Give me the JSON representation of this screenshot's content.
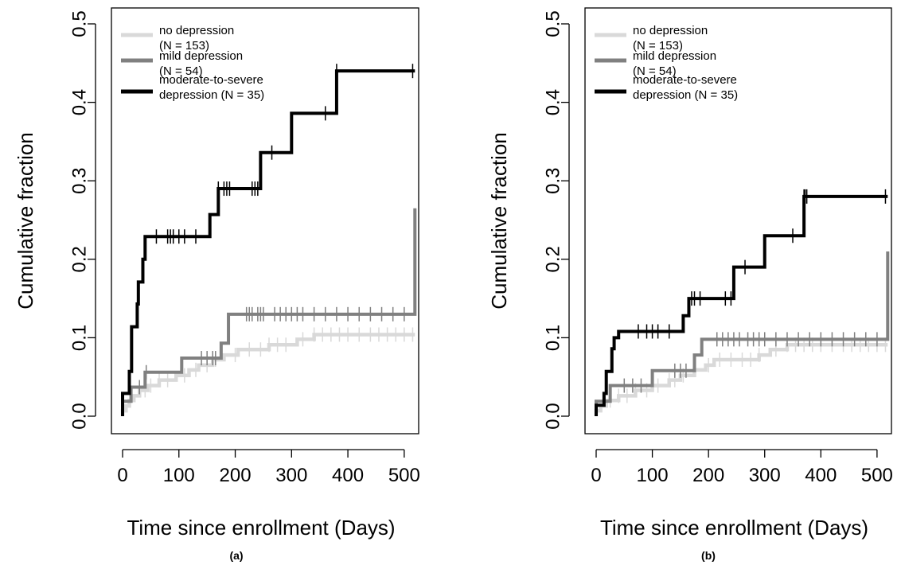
{
  "chart_data": [
    {
      "type": "line",
      "panel_label": "(a)",
      "xlabel": "Time since enrollment (Days)",
      "ylabel": "Cumulative fraction",
      "xlim": [
        0,
        520
      ],
      "ylim": [
        0,
        0.5
      ],
      "xticks": [
        "0",
        "100",
        "200",
        "300",
        "400",
        "500"
      ],
      "yticks": [
        "0.0",
        "0.1",
        "0.2",
        "0.3",
        "0.4",
        "0.5"
      ],
      "legend": {
        "position": "top-left",
        "entries": [
          {
            "line1": "no depression",
            "line2": "(N = 153)",
            "color": "#d9d9d9"
          },
          {
            "line1": "mild depression",
            "line2": "(N =  54)",
            "color": "#808080"
          },
          {
            "line1": "moderate-to-severe",
            "line2": "depression (N = 35)",
            "color": "#000000"
          }
        ]
      },
      "series": [
        {
          "name": "no depression (N = 153)",
          "color": "#d9d9d9",
          "steps": [
            [
              0,
              0
            ],
            [
              0,
              0.007
            ],
            [
              6,
              0.013
            ],
            [
              12,
              0.02
            ],
            [
              20,
              0.026
            ],
            [
              30,
              0.033
            ],
            [
              45,
              0.039
            ],
            [
              65,
              0.046
            ],
            [
              95,
              0.052
            ],
            [
              118,
              0.059
            ],
            [
              135,
              0.065
            ],
            [
              160,
              0.072
            ],
            [
              180,
              0.078
            ],
            [
              205,
              0.085
            ],
            [
              260,
              0.091
            ],
            [
              310,
              0.098
            ],
            [
              340,
              0.104
            ],
            [
              519,
              0.104
            ],
            [
              519,
              0.104
            ]
          ],
          "censor_x": [
            30,
            40,
            50,
            65,
            80,
            110,
            130,
            150,
            165,
            200,
            225,
            245,
            260,
            275,
            290,
            320,
            340,
            355,
            370,
            385,
            400,
            420,
            440,
            455,
            470,
            485,
            500,
            515
          ]
        },
        {
          "name": "mild depression (N =  54)",
          "color": "#808080",
          "steps": [
            [
              0,
              0
            ],
            [
              0,
              0.019
            ],
            [
              15,
              0.037
            ],
            [
              40,
              0.056
            ],
            [
              105,
              0.074
            ],
            [
              175,
              0.093
            ],
            [
              188,
              0.111
            ],
            [
              188,
              0.13
            ],
            [
              519,
              0.13
            ],
            [
              519,
              0.265
            ]
          ],
          "censor_x": [
            30,
            42,
            140,
            150,
            160,
            165,
            220,
            225,
            230,
            240,
            245,
            250,
            270,
            280,
            290,
            300,
            310,
            320,
            340,
            360,
            380,
            400,
            420,
            440,
            460,
            480,
            500
          ]
        },
        {
          "name": "moderate-to-severe depression (N = 35)",
          "color": "#000000",
          "steps": [
            [
              0,
              0
            ],
            [
              0,
              0.029
            ],
            [
              12,
              0.057
            ],
            [
              16,
              0.114
            ],
            [
              26,
              0.143
            ],
            [
              28,
              0.171
            ],
            [
              36,
              0.2
            ],
            [
              40,
              0.229
            ],
            [
              155,
              0.257
            ],
            [
              170,
              0.29
            ],
            [
              245,
              0.336
            ],
            [
              300,
              0.386
            ],
            [
              380,
              0.44
            ],
            [
              519,
              0.44
            ]
          ],
          "censor_x": [
            60,
            80,
            85,
            90,
            100,
            110,
            130,
            170,
            180,
            185,
            190,
            230,
            235,
            240,
            265,
            360,
            380,
            515
          ]
        }
      ]
    },
    {
      "type": "line",
      "panel_label": "(b)",
      "xlabel": "Time since enrollment (Days)",
      "ylabel": "Cumulative fraction",
      "xlim": [
        0,
        520
      ],
      "ylim": [
        0,
        0.5
      ],
      "xticks": [
        "0",
        "100",
        "200",
        "300",
        "400",
        "500"
      ],
      "yticks": [
        "0.0",
        "0.1",
        "0.2",
        "0.3",
        "0.4",
        "0.5"
      ],
      "legend": {
        "position": "top-left",
        "entries": [
          {
            "line1": "no depression",
            "line2": "(N = 153)",
            "color": "#d9d9d9"
          },
          {
            "line1": "mild depression",
            "line2": "(N =  54)",
            "color": "#808080"
          },
          {
            "line1": "moderate-to-severe",
            "line2": "depression (N = 35)",
            "color": "#000000"
          }
        ]
      },
      "series": [
        {
          "name": "no depression (N = 153)",
          "color": "#d9d9d9",
          "steps": [
            [
              0,
              0
            ],
            [
              0,
              0.007
            ],
            [
              8,
              0.013
            ],
            [
              18,
              0.02
            ],
            [
              40,
              0.026
            ],
            [
              70,
              0.033
            ],
            [
              100,
              0.039
            ],
            [
              130,
              0.046
            ],
            [
              150,
              0.052
            ],
            [
              175,
              0.059
            ],
            [
              195,
              0.065
            ],
            [
              210,
              0.072
            ],
            [
              290,
              0.078
            ],
            [
              310,
              0.085
            ],
            [
              340,
              0.091
            ],
            [
              519,
              0.091
            ]
          ],
          "censor_x": [
            25,
            40,
            55,
            70,
            90,
            110,
            130,
            140,
            155,
            200,
            220,
            240,
            260,
            275,
            290,
            320,
            340,
            355,
            370,
            385,
            400,
            420,
            440,
            455,
            470,
            485,
            500,
            515
          ]
        },
        {
          "name": "mild depression (N =  54)",
          "color": "#808080",
          "steps": [
            [
              0,
              0
            ],
            [
              0,
              0.019
            ],
            [
              25,
              0.039
            ],
            [
              100,
              0.058
            ],
            [
              175,
              0.078
            ],
            [
              188,
              0.098
            ],
            [
              519,
              0.098
            ],
            [
              519,
              0.21
            ]
          ],
          "censor_x": [
            50,
            65,
            80,
            140,
            150,
            160,
            215,
            225,
            235,
            245,
            255,
            270,
            280,
            290,
            300,
            320,
            340,
            360,
            380,
            400,
            420,
            440,
            460,
            480,
            500
          ]
        },
        {
          "name": "moderate-to-severe depression (N = 35)",
          "color": "#000000",
          "steps": [
            [
              0,
              0
            ],
            [
              0,
              0.014
            ],
            [
              14,
              0.029
            ],
            [
              18,
              0.057
            ],
            [
              28,
              0.086
            ],
            [
              32,
              0.1
            ],
            [
              40,
              0.108
            ],
            [
              155,
              0.128
            ],
            [
              165,
              0.15
            ],
            [
              245,
              0.19
            ],
            [
              300,
              0.23
            ],
            [
              370,
              0.28
            ],
            [
              519,
              0.28
            ]
          ],
          "censor_x": [
            75,
            90,
            100,
            110,
            130,
            170,
            175,
            185,
            230,
            240,
            265,
            350,
            370,
            372,
            375,
            515
          ]
        }
      ]
    }
  ]
}
